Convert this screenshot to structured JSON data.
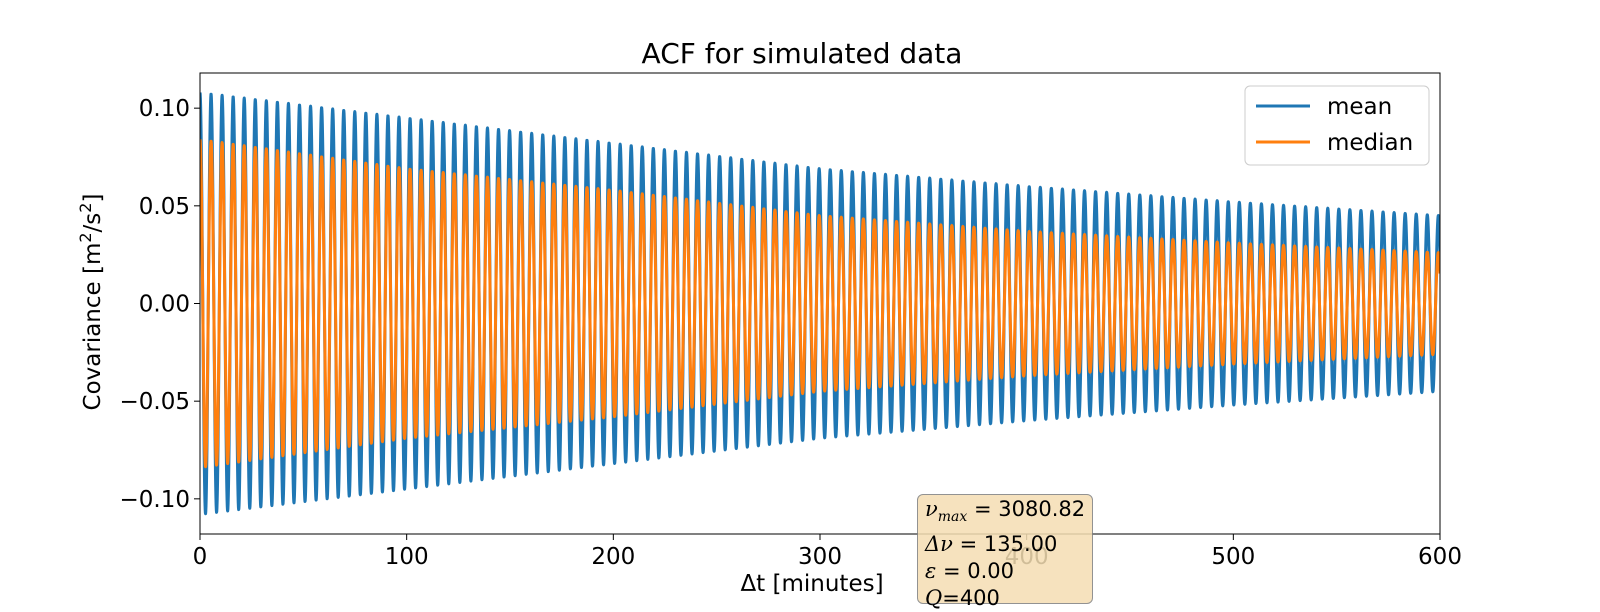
{
  "chart_data": {
    "type": "line",
    "title": "ACF for simulated data",
    "xlabel": "Δt [minutes]",
    "ylabel_text": "Covariance [m",
    "ylabel_sup1": "2",
    "ylabel_mid": "/s",
    "ylabel_sup2": "2",
    "ylabel_end": "]",
    "xlim": [
      0,
      600
    ],
    "ylim": [
      -0.118,
      0.118
    ],
    "xticks": [
      0,
      100,
      200,
      300,
      400,
      500,
      600
    ],
    "xtick_labels": [
      "0",
      "100",
      "200",
      "300",
      "400",
      "500",
      "600"
    ],
    "yticks": [
      -0.1,
      -0.05,
      0.0,
      0.05,
      0.1
    ],
    "ytick_labels": [
      "−0.10",
      "−0.05",
      "0.00",
      "0.05",
      "0.10"
    ],
    "grid": false,
    "legend_position": "top-right",
    "series": [
      {
        "name": "mean",
        "color": "#1f77b4",
        "model": "damped_cosine",
        "period_minutes": 5.35,
        "x": [
          0,
          100,
          200,
          300,
          400,
          500,
          600
        ],
        "envelope": [
          0.108,
          0.095,
          0.082,
          0.069,
          0.06,
          0.052,
          0.045
        ]
      },
      {
        "name": "median",
        "color": "#ff7f0e",
        "model": "damped_cosine",
        "period_minutes": 5.35,
        "x": [
          0,
          100,
          200,
          300,
          400,
          500,
          600
        ],
        "envelope": [
          0.084,
          0.069,
          0.058,
          0.045,
          0.037,
          0.031,
          0.026
        ]
      }
    ]
  },
  "info_box": {
    "line1_sym": "ν",
    "line1_sub": "max",
    "line1_val": " = 3080.82",
    "line2_sym": "Δν",
    "line2_val": " = 135.00",
    "line3_sym": "ε",
    "line3_val": " = 0.00",
    "line4_sym": "Q",
    "line4_val": "=400"
  }
}
